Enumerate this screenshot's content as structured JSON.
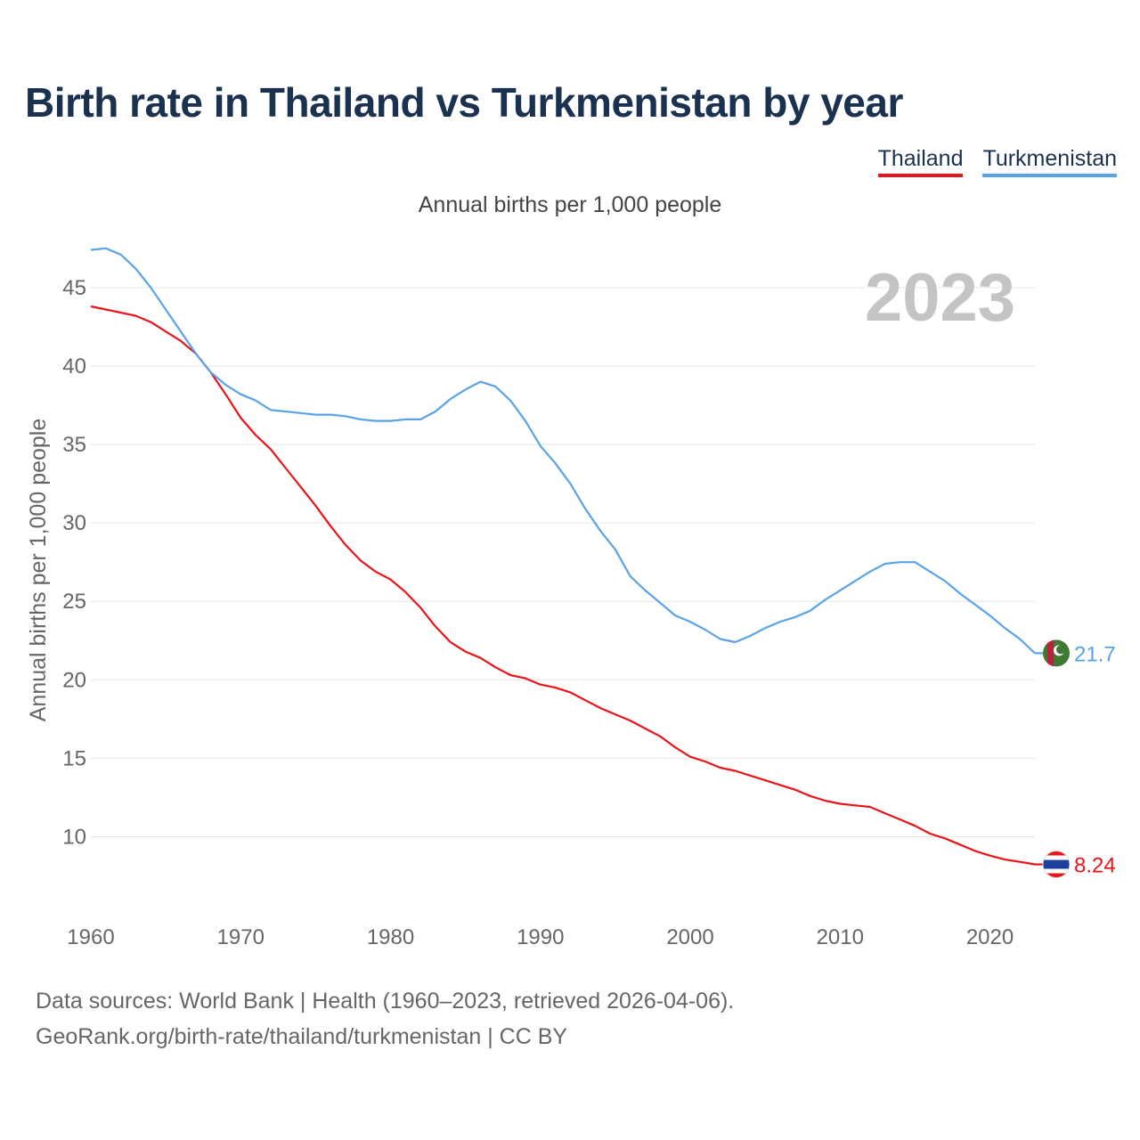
{
  "title": "Birth rate in Thailand vs Turkmenistan by year",
  "subtitle": "Annual births per 1,000 people",
  "legend": [
    {
      "label": "Thailand",
      "color": "#e8141a"
    },
    {
      "label": "Turkmenistan",
      "color": "#5aa3e8"
    }
  ],
  "footer": {
    "line1": "Data sources: World Bank | Health (1960–2023, retrieved 2026-04-06).",
    "line2": "GeoRank.org/birth-rate/thailand/turkmenistan | CC BY"
  },
  "chart_data": {
    "type": "line",
    "title": "Birth rate in Thailand vs Turkmenistan by year",
    "ylabel": "Annual births per 1,000 people",
    "xlabel": "",
    "year_label": "2023",
    "xlim": [
      1960,
      2023
    ],
    "ylim": [
      6,
      48
    ],
    "x_ticks": [
      1960,
      1970,
      1980,
      1990,
      2000,
      2010,
      2020
    ],
    "y_ticks": [
      10,
      15,
      20,
      25,
      30,
      35,
      40,
      45
    ],
    "grid": true,
    "x": [
      1960,
      1961,
      1962,
      1963,
      1964,
      1965,
      1966,
      1967,
      1968,
      1969,
      1970,
      1971,
      1972,
      1973,
      1974,
      1975,
      1976,
      1977,
      1978,
      1979,
      1980,
      1981,
      1982,
      1983,
      1984,
      1985,
      1986,
      1987,
      1988,
      1989,
      1990,
      1991,
      1992,
      1993,
      1994,
      1995,
      1996,
      1997,
      1998,
      1999,
      2000,
      2001,
      2002,
      2003,
      2004,
      2005,
      2006,
      2007,
      2008,
      2009,
      2010,
      2011,
      2012,
      2013,
      2014,
      2015,
      2016,
      2017,
      2018,
      2019,
      2020,
      2021,
      2022,
      2023
    ],
    "series": [
      {
        "name": "Thailand",
        "color": "#e8141a",
        "end_label": "8.24",
        "values": [
          43.8,
          43.6,
          43.4,
          43.2,
          42.8,
          42.2,
          41.6,
          40.8,
          39.6,
          38.2,
          36.7,
          35.6,
          34.7,
          33.5,
          32.3,
          31.1,
          29.8,
          28.6,
          27.6,
          26.9,
          26.4,
          25.6,
          24.6,
          23.4,
          22.4,
          21.8,
          21.4,
          20.8,
          20.3,
          20.1,
          19.7,
          19.5,
          19.2,
          18.7,
          18.2,
          17.8,
          17.4,
          16.9,
          16.4,
          15.7,
          15.1,
          14.8,
          14.4,
          14.2,
          13.9,
          13.6,
          13.3,
          13.0,
          12.6,
          12.3,
          12.1,
          12.0,
          11.9,
          11.5,
          11.1,
          10.7,
          10.2,
          9.9,
          9.5,
          9.1,
          8.8,
          8.55,
          8.4,
          8.24
        ]
      },
      {
        "name": "Turkmenistan",
        "color": "#5aa3e8",
        "end_label": "21.7",
        "values": [
          47.4,
          47.5,
          47.1,
          46.2,
          45.0,
          43.6,
          42.2,
          40.8,
          39.6,
          38.8,
          38.2,
          37.8,
          37.2,
          37.1,
          37.0,
          36.9,
          36.9,
          36.8,
          36.6,
          36.5,
          36.5,
          36.6,
          36.6,
          37.1,
          37.9,
          38.5,
          39.0,
          38.7,
          37.8,
          36.5,
          34.9,
          33.8,
          32.5,
          30.9,
          29.5,
          28.3,
          26.6,
          25.7,
          24.9,
          24.1,
          23.7,
          23.2,
          22.6,
          22.4,
          22.8,
          23.3,
          23.7,
          24.0,
          24.4,
          25.1,
          25.7,
          26.3,
          26.9,
          27.4,
          27.5,
          27.5,
          26.9,
          26.3,
          25.5,
          24.8,
          24.1,
          23.3,
          22.6,
          21.7
        ]
      }
    ]
  }
}
